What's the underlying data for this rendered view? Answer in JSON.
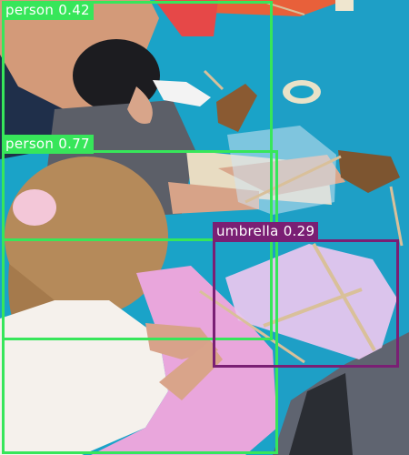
{
  "image": {
    "description_free": true,
    "colors": {
      "floor": "#1aa3c8",
      "floor_dark": "#138db0",
      "box_person": "#37e65a",
      "box_umbrella": "#7a1f74"
    }
  },
  "detections": [
    {
      "label": "person 0.42",
      "class": "person",
      "score": 0.42,
      "color": "#37e65a"
    },
    {
      "label": "person 0.77",
      "class": "person",
      "score": 0.77,
      "color": "#37e65a"
    },
    {
      "label": "umbrella 0.29",
      "class": "umbrella",
      "score": 0.29,
      "color": "#7a1f74"
    }
  ]
}
